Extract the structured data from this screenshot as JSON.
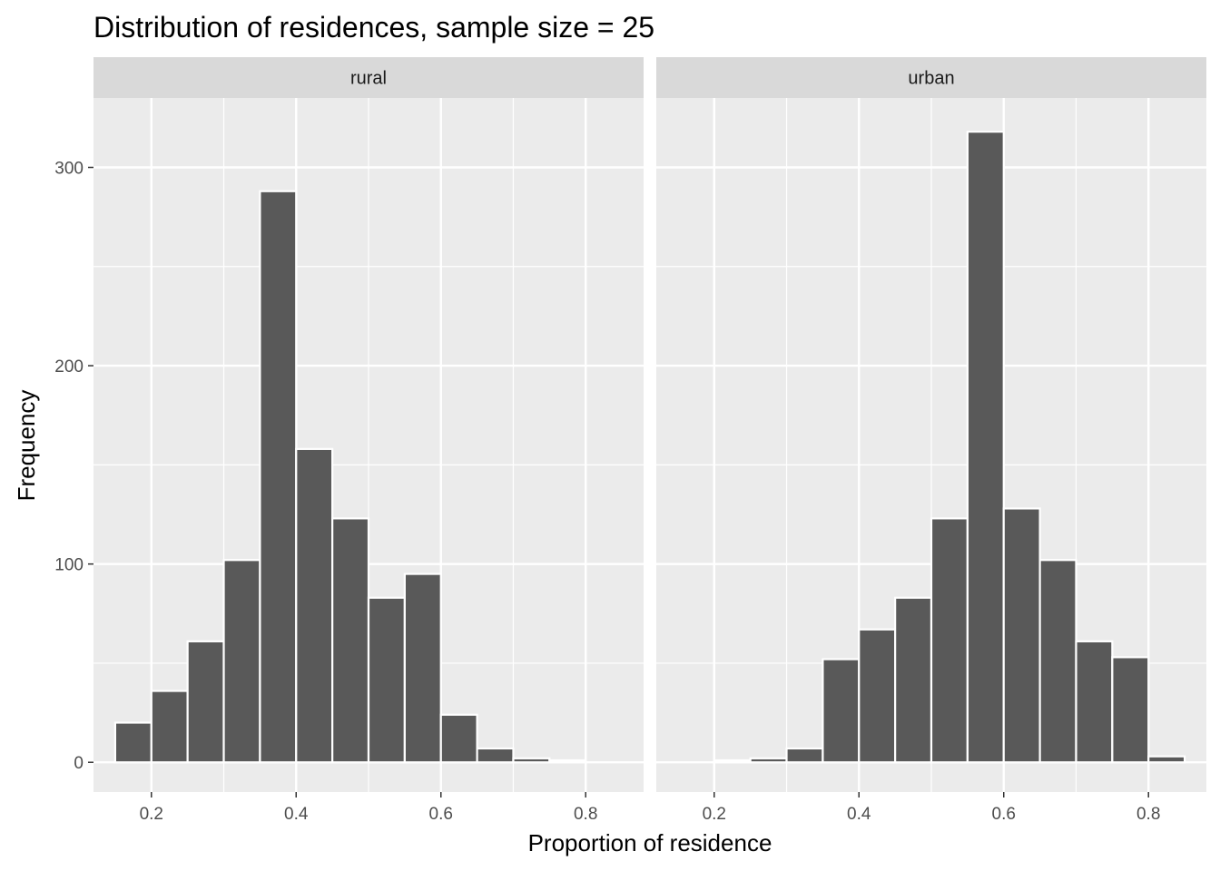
{
  "chart_data": {
    "type": "bar",
    "title": "Distribution of residences, sample size = 25",
    "xlabel": "Proportion of residence",
    "ylabel": "Frequency",
    "xlim": [
      0.12,
      0.88
    ],
    "ylim": [
      -15,
      335
    ],
    "x_ticks": [
      "0.2",
      "0.4",
      "0.6",
      "0.8"
    ],
    "x_tick_values": [
      0.2,
      0.4,
      0.6,
      0.8
    ],
    "y_ticks": [
      "0",
      "100",
      "200",
      "300"
    ],
    "y_tick_values": [
      0,
      100,
      200,
      300
    ],
    "grid": true,
    "bar_color": "#595959",
    "bar_outline": "#ffffff",
    "panel_background": "#ebebeb",
    "strip_background": "#d9d9d9",
    "bin_width": 0.05,
    "panels": [
      {
        "label": "rural",
        "bins": [
          {
            "x": 0.15,
            "count": 20
          },
          {
            "x": 0.2,
            "count": 36
          },
          {
            "x": 0.25,
            "count": 61
          },
          {
            "x": 0.3,
            "count": 102
          },
          {
            "x": 0.35,
            "count": 288
          },
          {
            "x": 0.4,
            "count": 158
          },
          {
            "x": 0.45,
            "count": 123
          },
          {
            "x": 0.5,
            "count": 83
          },
          {
            "x": 0.55,
            "count": 95
          },
          {
            "x": 0.6,
            "count": 24
          },
          {
            "x": 0.65,
            "count": 7
          },
          {
            "x": 0.7,
            "count": 2
          },
          {
            "x": 0.75,
            "count": 1
          }
        ]
      },
      {
        "label": "urban",
        "bins": [
          {
            "x": 0.2,
            "count": 1
          },
          {
            "x": 0.25,
            "count": 2
          },
          {
            "x": 0.3,
            "count": 7
          },
          {
            "x": 0.35,
            "count": 52
          },
          {
            "x": 0.4,
            "count": 67
          },
          {
            "x": 0.45,
            "count": 83
          },
          {
            "x": 0.5,
            "count": 123
          },
          {
            "x": 0.55,
            "count": 318
          },
          {
            "x": 0.6,
            "count": 128
          },
          {
            "x": 0.65,
            "count": 102
          },
          {
            "x": 0.7,
            "count": 61
          },
          {
            "x": 0.75,
            "count": 53
          },
          {
            "x": 0.8,
            "count": 3
          }
        ]
      }
    ]
  }
}
